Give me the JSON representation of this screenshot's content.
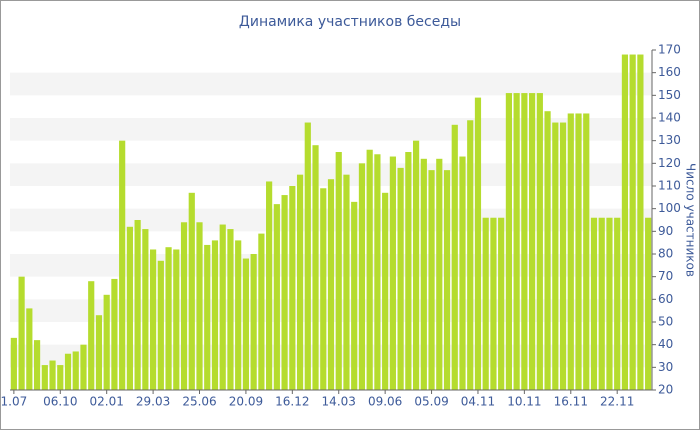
{
  "chart_data": {
    "type": "bar",
    "title": "Динамика участников беседы",
    "y_label": "Число участников",
    "categories": [
      "1.07",
      null,
      null,
      null,
      null,
      null,
      "06.10",
      null,
      null,
      null,
      null,
      null,
      "02.01",
      null,
      null,
      null,
      null,
      null,
      "29.03",
      null,
      null,
      null,
      null,
      null,
      "25.06",
      null,
      null,
      null,
      null,
      null,
      "20.09",
      null,
      null,
      null,
      null,
      null,
      "16.12",
      null,
      null,
      null,
      null,
      null,
      "14.03",
      null,
      null,
      null,
      null,
      null,
      "09.06",
      null,
      null,
      null,
      null,
      null,
      "05.09",
      null,
      null,
      null,
      null,
      null,
      "04.11",
      null,
      null,
      null,
      null,
      null,
      "10.11",
      null,
      null,
      null,
      null,
      null,
      "16.11",
      null,
      null,
      null,
      null,
      null,
      "22.11",
      null,
      null,
      null,
      null
    ],
    "values": [
      43,
      70,
      56,
      42,
      31,
      33,
      31,
      36,
      37,
      40,
      68,
      53,
      62,
      69,
      130,
      92,
      95,
      91,
      82,
      77,
      83,
      82,
      94,
      107,
      94,
      84,
      86,
      93,
      91,
      86,
      78,
      80,
      89,
      112,
      102,
      106,
      110,
      115,
      138,
      128,
      109,
      113,
      125,
      115,
      103,
      120,
      126,
      124,
      107,
      123,
      118,
      125,
      130,
      122,
      117,
      122,
      117,
      137,
      123,
      139,
      149,
      96,
      96,
      96,
      151,
      151,
      151,
      151,
      151,
      143,
      138,
      138,
      142,
      142,
      142,
      96,
      96,
      96,
      96,
      168,
      168,
      168,
      96
    ],
    "color": "#b5dc2e",
    "ylim": [
      20,
      170
    ],
    "yticks": [
      20,
      30,
      40,
      50,
      60,
      70,
      80,
      90,
      100,
      110,
      120,
      130,
      140,
      150,
      160,
      170
    ],
    "grid": true
  }
}
